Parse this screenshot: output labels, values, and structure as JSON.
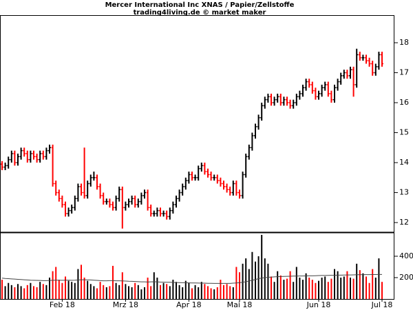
{
  "chart_data": [
    {
      "type": "ohlc",
      "title": "Mercer International Inc XNAS / Papier/Zellstoffe",
      "subtitle": "trading4living.de © market maker",
      "up_color": "#000000",
      "down_color": "#ff0000",
      "categories": [
        null,
        null,
        null,
        null,
        null,
        null,
        null,
        null,
        null,
        null,
        null,
        null,
        null,
        null,
        null,
        null,
        null,
        null,
        null,
        "Feb 18",
        null,
        null,
        null,
        null,
        null,
        null,
        null,
        null,
        null,
        null,
        null,
        null,
        null,
        null,
        null,
        null,
        null,
        null,
        null,
        "Mrz 18",
        null,
        null,
        null,
        null,
        null,
        null,
        null,
        null,
        null,
        null,
        null,
        null,
        null,
        null,
        null,
        null,
        null,
        null,
        null,
        "Apr 18",
        null,
        null,
        null,
        null,
        null,
        null,
        null,
        null,
        null,
        null,
        null,
        null,
        null,
        null,
        null,
        "Mai 18",
        null,
        null,
        null,
        null,
        null,
        null,
        null,
        null,
        null,
        null,
        null,
        null,
        null,
        null,
        null,
        null,
        null,
        null,
        null,
        null,
        null,
        null,
        null,
        null,
        "Jun 18",
        null,
        null,
        null,
        null,
        null,
        null,
        null,
        null,
        null,
        null,
        null,
        null,
        null,
        null,
        null,
        null,
        null,
        null,
        null,
        "Jul 18"
      ],
      "open": [
        13.95,
        13.85,
        13.9,
        14.1,
        14.3,
        14.0,
        14.2,
        14.4,
        14.3,
        14.1,
        14.3,
        14.2,
        14.1,
        14.3,
        14.2,
        14.4,
        14.5,
        13.3,
        13.0,
        12.8,
        12.6,
        12.3,
        12.4,
        12.5,
        12.8,
        13.2,
        13.0,
        12.9,
        13.3,
        13.5,
        13.5,
        13.2,
        12.9,
        12.7,
        12.7,
        12.6,
        12.5,
        12.8,
        13.1,
        12.5,
        12.6,
        12.7,
        12.8,
        12.6,
        12.7,
        12.9,
        13.0,
        12.5,
        12.3,
        12.3,
        12.4,
        12.3,
        12.3,
        12.2,
        12.4,
        12.6,
        12.8,
        13.0,
        13.2,
        13.4,
        13.6,
        13.5,
        13.5,
        13.8,
        13.9,
        13.7,
        13.6,
        13.5,
        13.5,
        13.4,
        13.3,
        13.2,
        13.1,
        13.0,
        13.3,
        13.0,
        12.9,
        13.6,
        14.2,
        14.5,
        14.9,
        15.2,
        15.5,
        15.9,
        16.1,
        16.2,
        16.0,
        16.1,
        16.2,
        16.0,
        16.1,
        16.0,
        15.9,
        16.0,
        16.2,
        16.3,
        16.5,
        16.7,
        16.6,
        16.4,
        16.2,
        16.3,
        16.5,
        16.6,
        16.3,
        16.1,
        16.5,
        16.7,
        16.9,
        17.0,
        16.9,
        17.1,
        16.6,
        17.6,
        17.5,
        17.5,
        17.4,
        17.3,
        17.0,
        17.2,
        17.6
      ],
      "high": [
        14.05,
        14.0,
        14.2,
        14.4,
        14.4,
        14.3,
        14.5,
        14.5,
        14.4,
        14.4,
        14.4,
        14.3,
        14.4,
        14.4,
        14.5,
        14.6,
        14.6,
        13.4,
        13.1,
        12.9,
        12.7,
        12.5,
        12.6,
        12.9,
        13.3,
        13.3,
        14.5,
        13.4,
        13.6,
        13.7,
        13.6,
        13.3,
        13.0,
        12.8,
        12.8,
        12.7,
        12.9,
        13.2,
        13.2,
        12.7,
        12.8,
        12.9,
        12.9,
        12.8,
        13.0,
        13.1,
        13.1,
        12.6,
        12.4,
        12.5,
        12.5,
        12.4,
        12.4,
        12.5,
        12.7,
        12.9,
        13.1,
        13.3,
        13.5,
        13.7,
        13.7,
        13.6,
        13.9,
        14.0,
        14.0,
        13.8,
        13.7,
        13.6,
        13.6,
        13.5,
        13.4,
        13.3,
        13.2,
        13.4,
        13.4,
        13.1,
        13.7,
        14.3,
        14.6,
        15.0,
        15.3,
        15.6,
        16.0,
        16.2,
        16.3,
        16.3,
        16.2,
        16.3,
        16.3,
        16.2,
        16.2,
        16.1,
        16.1,
        16.3,
        16.4,
        16.6,
        16.8,
        16.8,
        16.7,
        16.5,
        16.4,
        16.6,
        16.7,
        16.7,
        16.4,
        16.6,
        16.8,
        17.0,
        17.1,
        17.1,
        17.2,
        17.2,
        17.8,
        17.7,
        17.6,
        17.6,
        17.5,
        17.4,
        17.3,
        17.7,
        17.7
      ],
      "low": [
        13.75,
        13.75,
        13.8,
        14.0,
        13.9,
        13.9,
        14.1,
        14.2,
        14.0,
        14.0,
        14.1,
        14.0,
        14.0,
        14.1,
        14.1,
        14.3,
        13.2,
        12.9,
        12.7,
        12.5,
        12.2,
        12.2,
        12.3,
        12.4,
        12.7,
        12.9,
        12.8,
        12.8,
        13.2,
        13.4,
        13.1,
        12.8,
        12.6,
        12.6,
        12.5,
        12.4,
        12.4,
        12.7,
        11.8,
        12.4,
        12.5,
        12.6,
        12.5,
        12.5,
        12.6,
        12.8,
        12.4,
        12.2,
        12.2,
        12.2,
        12.2,
        12.2,
        12.1,
        12.1,
        12.3,
        12.5,
        12.7,
        12.9,
        13.1,
        13.3,
        13.4,
        13.4,
        13.4,
        13.7,
        13.6,
        13.5,
        13.4,
        13.4,
        13.3,
        13.2,
        13.1,
        13.0,
        12.9,
        12.9,
        12.9,
        12.8,
        12.8,
        13.5,
        14.1,
        14.4,
        14.8,
        15.1,
        15.4,
        15.8,
        16.0,
        15.9,
        15.9,
        16.0,
        15.9,
        15.9,
        15.9,
        15.8,
        15.8,
        15.9,
        16.1,
        16.2,
        16.4,
        16.5,
        16.3,
        16.1,
        16.1,
        16.2,
        16.4,
        16.2,
        16.0,
        16.0,
        16.4,
        16.6,
        16.8,
        16.8,
        16.8,
        16.2,
        16.5,
        17.4,
        17.4,
        17.3,
        17.2,
        16.9,
        16.9,
        17.1,
        17.2
      ],
      "close": [
        13.85,
        13.9,
        14.1,
        14.3,
        14.0,
        14.2,
        14.4,
        14.3,
        14.1,
        14.3,
        14.2,
        14.1,
        14.3,
        14.2,
        14.4,
        14.5,
        13.3,
        13.0,
        12.8,
        12.6,
        12.3,
        12.4,
        12.5,
        12.8,
        13.2,
        13.0,
        12.9,
        13.3,
        13.5,
        13.5,
        13.2,
        12.9,
        12.7,
        12.7,
        12.6,
        12.5,
        12.8,
        13.1,
        12.5,
        12.6,
        12.7,
        12.8,
        12.6,
        12.7,
        12.9,
        13.0,
        12.5,
        12.3,
        12.3,
        12.4,
        12.3,
        12.3,
        12.2,
        12.4,
        12.6,
        12.8,
        13.0,
        13.2,
        13.4,
        13.6,
        13.5,
        13.5,
        13.8,
        13.9,
        13.7,
        13.6,
        13.5,
        13.5,
        13.4,
        13.3,
        13.2,
        13.1,
        13.0,
        13.3,
        13.0,
        12.9,
        13.6,
        14.2,
        14.5,
        14.9,
        15.2,
        15.5,
        15.9,
        16.1,
        16.2,
        16.0,
        16.1,
        16.2,
        16.0,
        16.1,
        16.0,
        15.9,
        16.0,
        16.2,
        16.3,
        16.5,
        16.7,
        16.6,
        16.4,
        16.2,
        16.3,
        16.5,
        16.6,
        16.3,
        16.1,
        16.5,
        16.7,
        16.9,
        17.0,
        16.9,
        17.1,
        16.6,
        17.6,
        17.5,
        17.5,
        17.4,
        17.3,
        17.0,
        17.2,
        17.6,
        17.3
      ],
      "ylim": [
        11.68,
        18.92
      ],
      "yticks": [
        12,
        13,
        14,
        15,
        16,
        17,
        18
      ]
    },
    {
      "type": "bar",
      "series": [
        {
          "color": "price",
          "values": [
            180,
            120,
            150,
            130,
            110,
            140,
            120,
            100,
            130,
            150,
            120,
            110,
            160,
            140,
            130,
            200,
            260,
            300,
            180,
            150,
            210,
            170,
            160,
            150,
            280,
            320,
            200,
            170,
            140,
            120,
            100,
            160,
            130,
            110,
            120,
            310,
            150,
            130,
            250,
            140,
            120,
            110,
            150,
            130,
            90,
            110,
            200,
            120,
            250,
            200,
            130,
            150,
            140,
            120,
            180,
            160,
            130,
            110,
            170,
            150,
            100,
            130,
            110,
            160,
            140,
            120,
            100,
            90,
            110,
            180,
            130,
            140,
            120,
            110,
            300,
            250,
            330,
            380,
            280,
            440,
            350,
            400,
            600,
            380,
            330,
            210,
            160,
            260,
            220,
            180,
            190,
            260,
            160,
            300,
            200,
            180,
            240,
            200,
            180,
            150,
            170,
            200,
            210,
            160,
            190,
            280,
            260,
            200,
            210,
            260,
            200,
            190,
            330,
            270,
            240,
            210,
            150,
            280,
            200,
            380,
            160
          ]
        },
        {
          "type": "line",
          "color": "#444444",
          "values": [
            195,
            192,
            190,
            188,
            186,
            184,
            182,
            180,
            178,
            176,
            175,
            174,
            173,
            172,
            172,
            173,
            175,
            176,
            176,
            175,
            176,
            176,
            175,
            176,
            178,
            180,
            180,
            179,
            178,
            176,
            174,
            172,
            170,
            170,
            172,
            172,
            170,
            170,
            169,
            168,
            166,
            165,
            164,
            162,
            160,
            160,
            159,
            160,
            161,
            160,
            158,
            157,
            156,
            156,
            155,
            154,
            153,
            152,
            152,
            151,
            150,
            150,
            149,
            148,
            148,
            147,
            147,
            146,
            146,
            146,
            146,
            146,
            146,
            148,
            150,
            152,
            156,
            162,
            168,
            175,
            182,
            190,
            196,
            200,
            203,
            205,
            207,
            209,
            210,
            211,
            212,
            213,
            214,
            214,
            215,
            215,
            216,
            217,
            217,
            218,
            219,
            220,
            220,
            221,
            222,
            222,
            223,
            223,
            224,
            225,
            225,
            226,
            227,
            227,
            228,
            228,
            228,
            229,
            229,
            230,
            230
          ]
        }
      ],
      "ylim": [
        0,
        619
      ],
      "yticks": [
        200,
        400
      ]
    }
  ]
}
